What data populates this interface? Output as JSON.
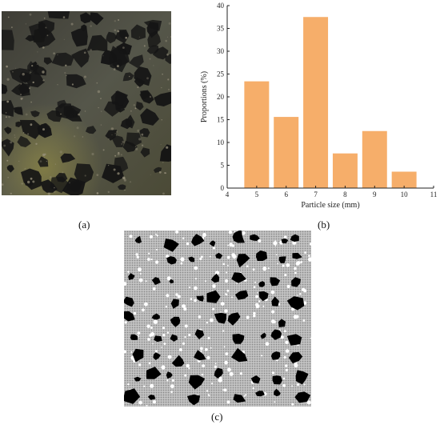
{
  "captions": {
    "a": "(a)",
    "b": "(b)",
    "c": "(c)"
  },
  "chart_data": {
    "type": "bar",
    "categories": [
      "5",
      "6",
      "7",
      "8",
      "9",
      "10"
    ],
    "x": [
      5,
      6,
      7,
      8,
      9,
      10
    ],
    "values": [
      23.4,
      15.6,
      37.5,
      7.6,
      12.5,
      3.6
    ],
    "xlabel": "Particle size  (mm)",
    "ylabel": "Proportions  (%)",
    "xlim": [
      4,
      11
    ],
    "ylim": [
      0,
      40
    ],
    "xticks": [
      "4",
      "5",
      "6",
      "7",
      "8",
      "9",
      "10",
      "11"
    ],
    "yticks": [
      "0",
      "5",
      "10",
      "15",
      "20",
      "25",
      "30",
      "35",
      "40"
    ],
    "bar_color": "#F6AE6A",
    "grid": false
  },
  "colors": {
    "photo_bg": "#4a4a3e",
    "aggregate": "#161616",
    "sim_matrix": "#bdbdbd"
  }
}
